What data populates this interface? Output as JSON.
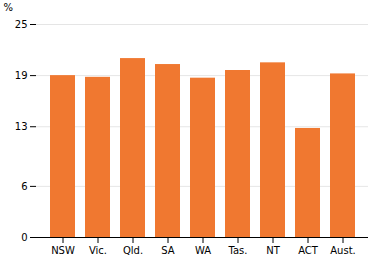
{
  "chart_data": {
    "type": "bar",
    "categories": [
      "NSW",
      "Vic.",
      "Qld.",
      "SA",
      "WA",
      "Tas.",
      "NT",
      "ACT",
      "Aust."
    ],
    "values": [
      19.0,
      18.8,
      21.0,
      20.3,
      18.7,
      19.6,
      20.5,
      12.8,
      19.2
    ],
    "color": "#F07830",
    "ylabel": "%",
    "ylim": [
      0,
      25
    ],
    "yticks": [
      0,
      6,
      13,
      19,
      25
    ],
    "grid": true
  }
}
